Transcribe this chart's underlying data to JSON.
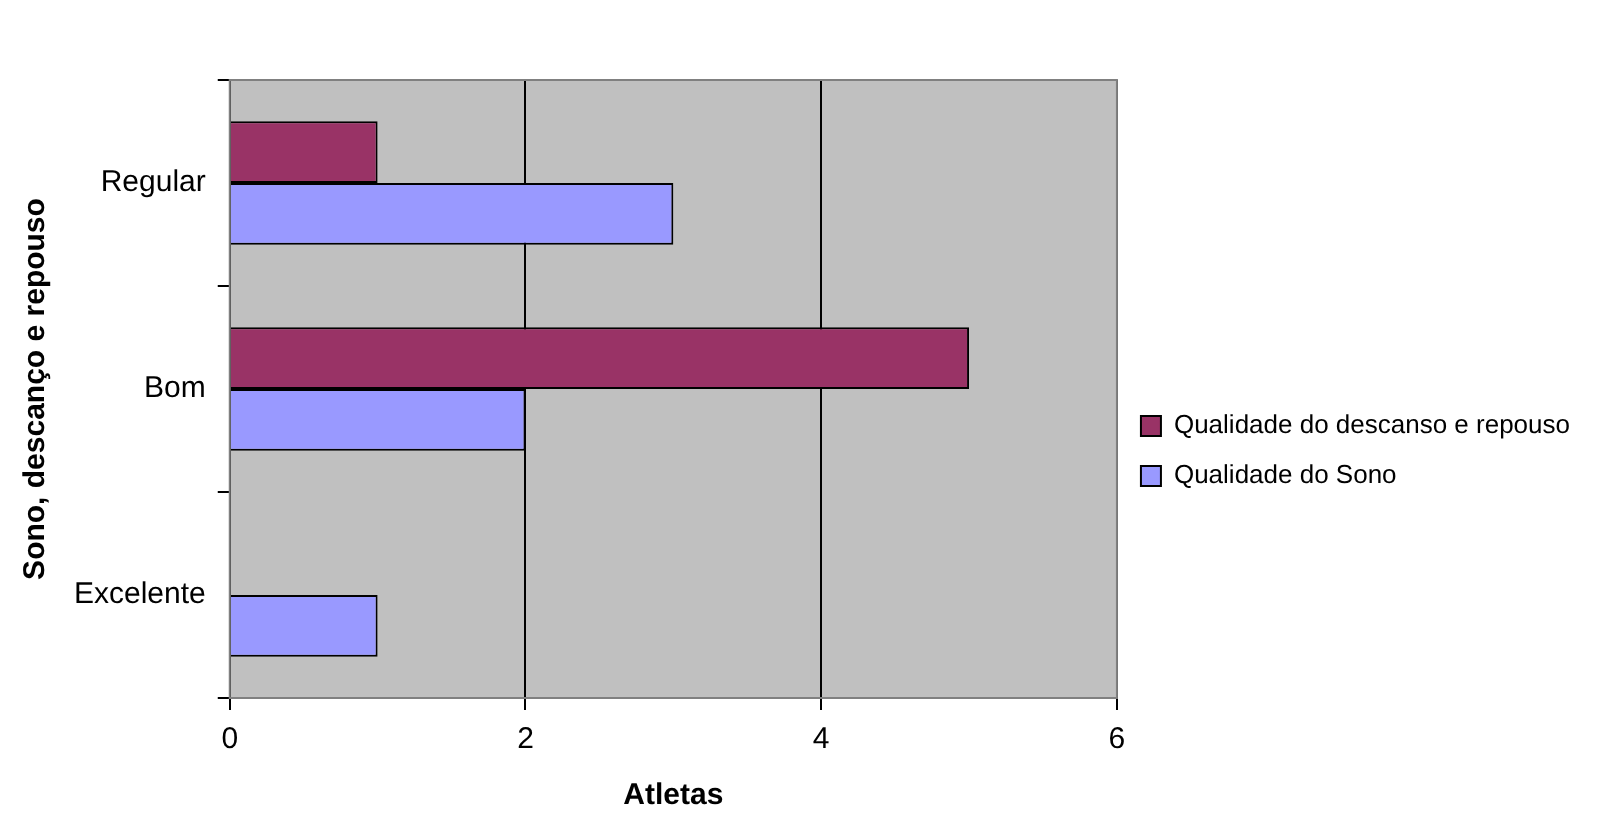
{
  "chart_data": {
    "type": "bar",
    "orientation": "horizontal",
    "xlabel": "Atletas",
    "ylabel": "Sono, descanço e repouso",
    "categories": [
      "Regular",
      "Bom",
      "Excelente"
    ],
    "series": [
      {
        "name": "Qualidade do descanso e repouso",
        "color": "#993366",
        "values": [
          1,
          5,
          null
        ]
      },
      {
        "name": "Qualidade do Sono",
        "color": "#9999ff",
        "values": [
          3,
          2,
          1
        ]
      }
    ],
    "xlim": [
      0,
      6
    ],
    "xticks": [
      0,
      2,
      4,
      6
    ],
    "grid": "x",
    "legend": "right"
  }
}
